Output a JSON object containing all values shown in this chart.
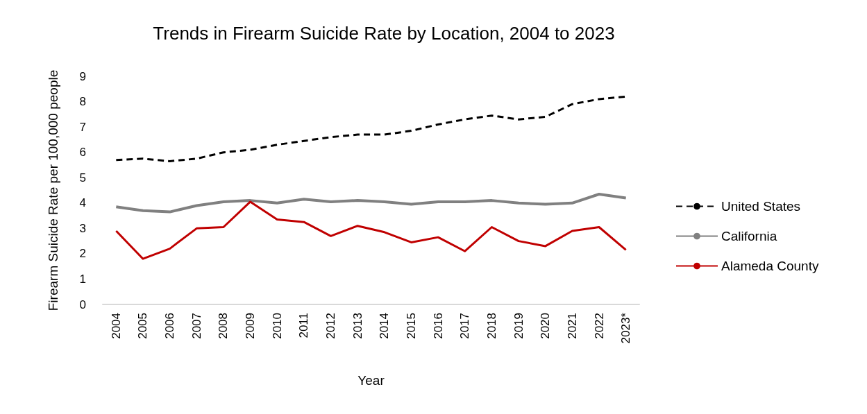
{
  "chart_data": {
    "type": "line",
    "title": "Trends in Firearm Suicide Rate by Location, 2004 to 2023",
    "xlabel": "Year",
    "ylabel": "Firearm Suicide Rate per 100,000 people",
    "categories": [
      "2004",
      "2005",
      "2006",
      "2007",
      "2008",
      "2009",
      "2010",
      "2011",
      "2012",
      "2013",
      "2014",
      "2015",
      "2016",
      "2017",
      "2018",
      "2019",
      "2020",
      "2021",
      "2022",
      "2023*"
    ],
    "series": [
      {
        "name": "United States",
        "color": "#000000",
        "line_style": "dashed",
        "values": [
          5.7,
          5.75,
          5.65,
          5.75,
          6.0,
          6.1,
          6.3,
          6.45,
          6.6,
          6.7,
          6.7,
          6.85,
          7.1,
          7.3,
          7.45,
          7.3,
          7.4,
          7.9,
          8.1,
          8.2
        ]
      },
      {
        "name": "California",
        "color": "#808080",
        "line_style": "solid",
        "values": [
          3.85,
          3.7,
          3.65,
          3.9,
          4.05,
          4.1,
          4.0,
          4.15,
          4.05,
          4.1,
          4.05,
          3.95,
          4.05,
          4.05,
          4.1,
          4.0,
          3.95,
          4.0,
          4.35,
          4.2
        ]
      },
      {
        "name": "Alameda County",
        "color": "#c00000",
        "line_style": "solid",
        "values": [
          2.9,
          1.8,
          2.2,
          3.0,
          3.05,
          4.05,
          3.35,
          3.25,
          2.7,
          3.1,
          2.85,
          2.45,
          2.65,
          2.1,
          3.05,
          2.5,
          2.3,
          2.9,
          3.05,
          2.15
        ]
      }
    ],
    "ylim": [
      0,
      9
    ],
    "yticks": [
      0,
      1,
      2,
      3,
      4,
      5,
      6,
      7,
      8,
      9
    ],
    "grid": false,
    "legend": "right",
    "marker": "none"
  }
}
